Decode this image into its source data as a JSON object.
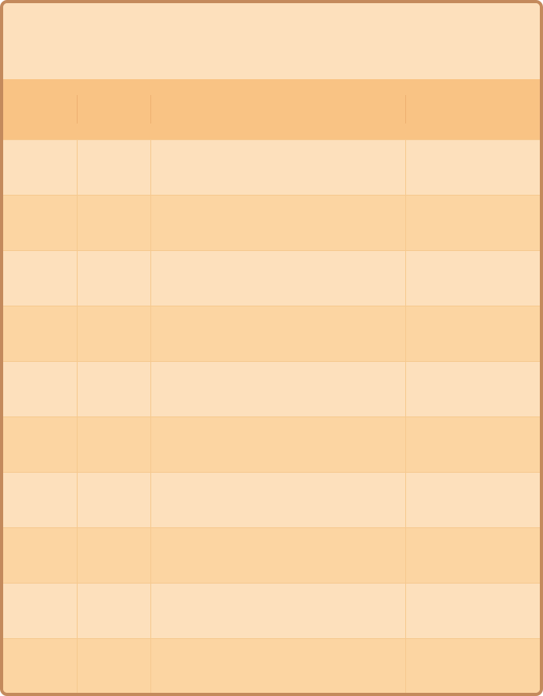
{
  "table": {
    "title": "",
    "columns": [
      "",
      "",
      "",
      ""
    ],
    "rows": [
      [
        "",
        "",
        "",
        ""
      ],
      [
        "",
        "",
        "",
        ""
      ],
      [
        "",
        "",
        "",
        ""
      ],
      [
        "",
        "",
        "",
        ""
      ],
      [
        "",
        "",
        "",
        ""
      ],
      [
        "",
        "",
        "",
        ""
      ],
      [
        "",
        "",
        "",
        ""
      ],
      [
        "",
        "",
        "",
        ""
      ],
      [
        "",
        "",
        "",
        ""
      ],
      [
        "",
        "",
        "",
        ""
      ]
    ]
  },
  "colors": {
    "border": "#c48a5c",
    "banner": "#fde0bc",
    "header": "#f9c384",
    "row_light": "#fde0bc",
    "row_dark": "#fcd5a2",
    "grid_line": "#f6c98f"
  }
}
